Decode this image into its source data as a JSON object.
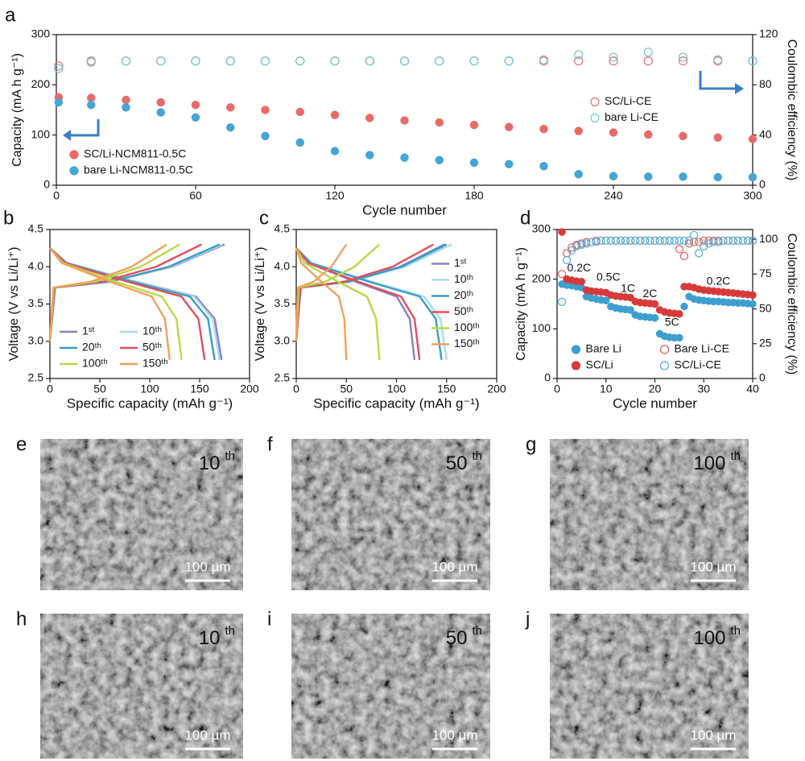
{
  "chart_data": [
    {
      "type": "scatter",
      "panel": "a",
      "xlabel": "Cycle number",
      "ylabel": "Capacity (mA h g⁻¹)",
      "y2label": "Coulombic efficiency (%)",
      "xlim": [
        0,
        300
      ],
      "xticks": [
        0,
        60,
        120,
        180,
        240,
        300
      ],
      "ylim": [
        0,
        300
      ],
      "yticks": [
        0,
        100,
        200,
        300
      ],
      "y2lim": [
        0,
        120
      ],
      "y2ticks": [
        0,
        40,
        80,
        120
      ],
      "legend": "lower left",
      "y2legend": "center right",
      "legend_columns": 1,
      "x": [
        1,
        15,
        30,
        45,
        60,
        75,
        90,
        105,
        120,
        135,
        150,
        165,
        180,
        195,
        210,
        225,
        240,
        255,
        270,
        285,
        300
      ],
      "series": [
        {
          "name": "SC/Li-NCM811-0.5C",
          "color": "#ea6a6a",
          "marker": "filled",
          "values": [
            175,
            174,
            170,
            165,
            160,
            155,
            150,
            146,
            140,
            134,
            129,
            125,
            120,
            116,
            112,
            108,
            105,
            101,
            98,
            95,
            92
          ]
        },
        {
          "name": "bare Li-NCM811-0.5C",
          "color": "#45a5d5",
          "marker": "filled",
          "values": [
            165,
            160,
            155,
            145,
            135,
            115,
            98,
            85,
            68,
            60,
            55,
            50,
            45,
            42,
            38,
            22,
            18,
            17,
            17,
            16,
            16
          ]
        },
        {
          "name": "SC/Li-CE",
          "color": "#ea6a6a",
          "marker": "open",
          "axis": "y2",
          "values": [
            95,
            99,
            99,
            99,
            99,
            99,
            99,
            99,
            99,
            99,
            99,
            99,
            99,
            99,
            99,
            99,
            99,
            99,
            99,
            99,
            99
          ]
        },
        {
          "name": "bare Li-CE",
          "color": "#6cc6dc",
          "marker": "open",
          "axis": "y2",
          "values": [
            93,
            98,
            99,
            99,
            99,
            99,
            99,
            99,
            99,
            99,
            99,
            99,
            99,
            99,
            100,
            104,
            102,
            106,
            102,
            100,
            99
          ]
        }
      ]
    },
    {
      "type": "line",
      "panel": "b",
      "xlabel": "Specific capacity (mAh g⁻¹)",
      "ylabel": "Voltage (V vs Li/Li⁺)",
      "xlim": [
        0,
        200
      ],
      "xticks": [
        0,
        50,
        100,
        150,
        200
      ],
      "ylim": [
        2.5,
        4.5
      ],
      "yticks": [
        2.5,
        {
          "value": 3,
          "label": "3.0"
        },
        3.5,
        {
          "value": 4,
          "label": "4.0"
        },
        4.5
      ],
      "legend": "lower left",
      "legend_columns": 2,
      "series": [
        {
          "name": "1ˢᵗ",
          "color": "#8b7fc0",
          "x": [
            0,
            5.3,
            61.3,
            122.5,
            175,
            null,
            0,
            17.2,
            86,
            146.2,
            165.1,
            172
          ],
          "values": [
            3.0,
            3.72,
            3.8,
            4.0,
            4.3,
            null,
            4.25,
            4.05,
            3.8,
            3.6,
            3.3,
            2.75
          ]
        },
        {
          "name": "10ᵗʰ",
          "color": "#a8dcec",
          "x": [
            0,
            5.2,
            60.6,
            121.1,
            173,
            null,
            0,
            17,
            85,
            144.5,
            163.2,
            170
          ],
          "values": [
            3.0,
            3.72,
            3.8,
            4.0,
            4.3,
            null,
            4.25,
            4.05,
            3.8,
            3.6,
            3.3,
            2.75
          ]
        },
        {
          "name": "20ᵗʰ",
          "color": "#3a9dc6",
          "x": [
            0,
            5.1,
            59.5,
            119,
            170,
            null,
            0,
            16.5,
            82.5,
            140.3,
            158.4,
            165
          ],
          "values": [
            3.0,
            3.72,
            3.8,
            4.0,
            4.3,
            null,
            4.25,
            4.05,
            3.8,
            3.6,
            3.3,
            2.75
          ]
        },
        {
          "name": "50ᵗʰ",
          "color": "#e0505a",
          "x": [
            0,
            4.6,
            53.2,
            106.4,
            152,
            null,
            0,
            15.5,
            77.5,
            131.8,
            148.8,
            155
          ],
          "values": [
            3.0,
            3.72,
            3.8,
            4.0,
            4.3,
            null,
            4.25,
            4.05,
            3.8,
            3.6,
            3.3,
            2.75
          ]
        },
        {
          "name": "100ᵗʰ",
          "color": "#b8d84a",
          "x": [
            0,
            3.9,
            45.5,
            91,
            130,
            null,
            0,
            13.2,
            66,
            112.2,
            126.7,
            132
          ],
          "values": [
            3.0,
            3.72,
            3.8,
            4.0,
            4.3,
            null,
            4.25,
            4.05,
            3.8,
            3.6,
            3.3,
            2.75
          ]
        },
        {
          "name": "150ᵗʰ",
          "color": "#f2a05a",
          "x": [
            0,
            3.5,
            41,
            81.9,
            117,
            null,
            0,
            12,
            60,
            102,
            115.2,
            120
          ],
          "values": [
            3.0,
            3.72,
            3.8,
            4.0,
            4.3,
            null,
            4.25,
            4.05,
            3.8,
            3.6,
            3.3,
            2.75
          ]
        }
      ]
    },
    {
      "type": "line",
      "panel": "c",
      "xlabel": "Specific capacity (mAh g⁻¹)",
      "ylabel": "Voltage (V vs Li/Li⁺)",
      "xlim": [
        0,
        200
      ],
      "xticks": [
        0,
        50,
        100,
        150,
        200
      ],
      "ylim": [
        2.5,
        4.5
      ],
      "yticks": [
        2.5,
        {
          "value": 3,
          "label": "3.0"
        },
        3.5,
        {
          "value": 4,
          "label": "4.0"
        },
        4.5
      ],
      "legend": "center right",
      "legend_columns": 1,
      "series": [
        {
          "name": "1ˢᵗ",
          "color": "#8b7fc0",
          "x": [
            0,
            4.4,
            51.8,
            103.6,
            148,
            null,
            0,
            11.8,
            59,
            100.3,
            113.3,
            118
          ],
          "values": [
            3.0,
            3.72,
            3.8,
            4.0,
            4.3,
            null,
            4.25,
            4.05,
            3.8,
            3.6,
            3.3,
            2.75
          ]
        },
        {
          "name": "10ᵗʰ",
          "color": "#a8dcec",
          "x": [
            0,
            4.7,
            54.3,
            108.5,
            155,
            null,
            0,
            15,
            75,
            127.5,
            144,
            150
          ],
          "values": [
            3.0,
            3.72,
            3.8,
            4.0,
            4.3,
            null,
            4.25,
            4.05,
            3.8,
            3.6,
            3.3,
            2.75
          ]
        },
        {
          "name": "20ᵗʰ",
          "color": "#3a9dc6",
          "x": [
            0,
            4.5,
            52.5,
            105,
            150,
            null,
            0,
            14.5,
            72.5,
            123.3,
            139.2,
            145
          ],
          "values": [
            3.0,
            3.72,
            3.8,
            4.0,
            4.3,
            null,
            4.25,
            4.05,
            3.8,
            3.6,
            3.3,
            2.75
          ]
        },
        {
          "name": "50ᵗʰ",
          "color": "#e0505a",
          "x": [
            0,
            4.1,
            48,
            95.9,
            137,
            null,
            0,
            12.3,
            61.5,
            104.6,
            118.1,
            123
          ],
          "values": [
            3.0,
            3.72,
            3.8,
            4.0,
            4.3,
            null,
            4.25,
            4.05,
            3.8,
            3.6,
            3.3,
            2.75
          ]
        },
        {
          "name": "100ᵗʰ",
          "color": "#b8d84a",
          "x": [
            0,
            2.5,
            29.1,
            58.1,
            83,
            null,
            0,
            8.3,
            41.5,
            70.6,
            79.7,
            83
          ],
          "values": [
            3.0,
            3.72,
            3.8,
            4.0,
            4.3,
            null,
            4.25,
            4.05,
            3.8,
            3.6,
            3.3,
            2.75
          ]
        },
        {
          "name": "150ᵗʰ",
          "color": "#f2a05a",
          "x": [
            0,
            1.5,
            17.5,
            35,
            50,
            null,
            0,
            5,
            25,
            42.5,
            48,
            50
          ],
          "values": [
            3.0,
            3.72,
            3.8,
            4.0,
            4.3,
            null,
            4.25,
            4.05,
            3.8,
            3.6,
            3.3,
            2.75
          ]
        }
      ]
    },
    {
      "type": "scatter",
      "panel": "d",
      "xlabel": "Cycle number",
      "ylabel": "Capacity (mA h g⁻¹)",
      "y2label": "Coulombic efficiency (%)",
      "xlim": [
        0,
        40
      ],
      "xticks": [
        0,
        10,
        20,
        30,
        40
      ],
      "ylim": [
        0,
        300
      ],
      "yticks": [
        0,
        100,
        200,
        300
      ],
      "y2lim": [
        0,
        107
      ],
      "y2ticks": [
        0,
        25,
        50,
        75,
        100
      ],
      "legend": "lower center",
      "legend_columns": 2,
      "annotations": [
        "0.2C",
        "0.5C",
        "1C",
        "2C",
        "5C",
        "0.2C"
      ],
      "x": [
        1,
        2,
        3,
        4,
        5,
        6,
        7,
        8,
        9,
        10,
        11,
        12,
        13,
        14,
        15,
        16,
        17,
        18,
        19,
        20,
        21,
        22,
        23,
        24,
        25,
        26,
        27,
        28,
        29,
        30,
        31,
        32,
        33,
        34,
        35,
        36,
        37,
        38,
        39,
        40
      ],
      "series": [
        {
          "name": "Bare Li",
          "color": "#3d9fcf",
          "marker": "filled",
          "values": [
            190,
            188,
            187,
            185,
            183,
            165,
            162,
            160,
            158,
            157,
            145,
            142,
            140,
            139,
            138,
            128,
            125,
            124,
            123,
            122,
            90,
            85,
            83,
            82,
            82,
            145,
            165,
            160,
            158,
            157,
            156,
            155,
            155,
            154,
            153,
            153,
            152,
            152,
            151,
            150
          ]
        },
        {
          "name": "Bare Li-CE",
          "color": "#e05a5a",
          "marker": "open",
          "axis": "y2",
          "values": [
            75,
            90,
            94,
            96,
            97,
            98,
            98,
            99,
            99,
            99,
            99,
            99,
            99,
            99,
            99,
            99,
            99,
            99,
            99,
            99,
            99,
            99,
            99,
            99,
            93,
            88,
            97,
            98,
            98,
            99,
            99,
            99,
            99,
            99,
            99,
            99,
            99,
            99,
            99,
            99
          ]
        },
        {
          "name": "SC/Li",
          "color": "#d83a3a",
          "marker": "filled",
          "values": [
            295,
            200,
            198,
            196,
            195,
            178,
            176,
            175,
            174,
            173,
            168,
            166,
            165,
            164,
            163,
            155,
            153,
            152,
            151,
            150,
            138,
            134,
            132,
            131,
            130,
            185,
            185,
            183,
            180,
            178,
            177,
            176,
            175,
            174,
            173,
            172,
            171,
            170,
            169,
            168
          ]
        },
        {
          "name": "SC/Li-CE",
          "color": "#4aaed8",
          "marker": "open",
          "axis": "y2",
          "values": [
            55,
            85,
            92,
            95,
            96,
            97,
            98,
            98,
            99,
            99,
            99,
            99,
            99,
            99,
            99,
            99,
            99,
            99,
            99,
            99,
            99,
            99,
            99,
            99,
            99,
            99,
            99,
            103,
            90,
            95,
            97,
            98,
            98,
            99,
            99,
            99,
            99,
            99,
            99,
            99
          ]
        }
      ]
    }
  ],
  "images": [
    {
      "panel": "e",
      "label": "10",
      "sup": "th",
      "scale": "100 µm"
    },
    {
      "panel": "f",
      "label": "50",
      "sup": "th",
      "scale": "100 µm"
    },
    {
      "panel": "g",
      "label": "100",
      "sup": "th",
      "scale": "100 µm"
    },
    {
      "panel": "h",
      "label": "10",
      "sup": "th",
      "scale": "100 µm"
    },
    {
      "panel": "i",
      "label": "50",
      "sup": "th",
      "scale": "100 µm"
    },
    {
      "panel": "j",
      "label": "100",
      "sup": "th",
      "scale": "100 µm"
    }
  ]
}
